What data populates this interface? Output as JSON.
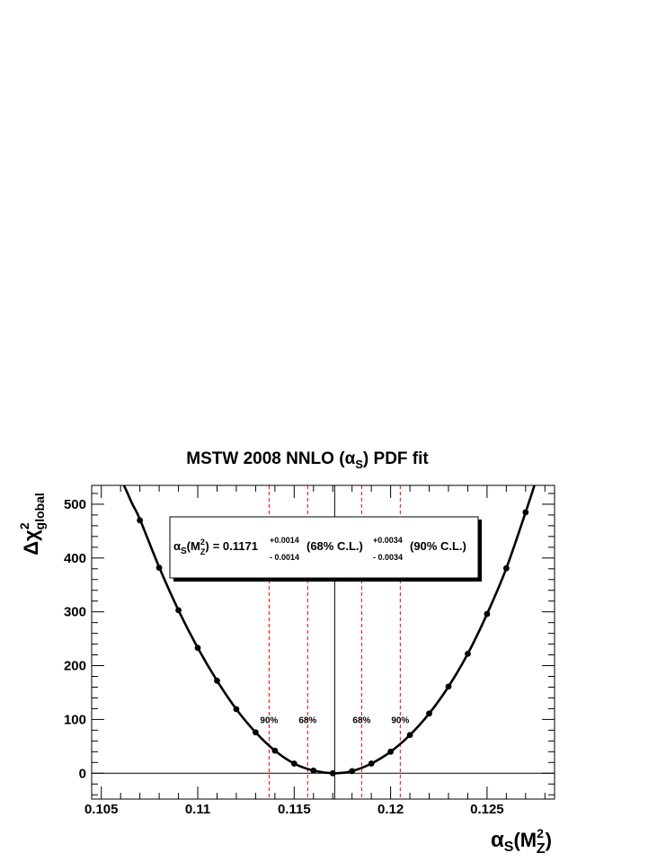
{
  "chart_data": {
    "type": "line",
    "title_main": "MSTW 2008 NNLO (",
    "title_symbol": "α",
    "title_sub": "S",
    "title_end": ") PDF fit",
    "xlabel": {
      "symbol": "α",
      "sub": "S",
      "open": "(M",
      "sup": "2",
      "sub2": "Z",
      "close": ")"
    },
    "ylabel": {
      "symbol": "Δχ",
      "sup": "2",
      "sub": "global"
    },
    "xlim": [
      0.1045,
      0.1285
    ],
    "ylim": [
      -48,
      535
    ],
    "x_ticks": [
      0.105,
      0.11,
      0.115,
      0.12,
      0.125
    ],
    "x_tick_labels": [
      "0.105",
      "0.11",
      "0.115",
      "0.12",
      "0.125"
    ],
    "y_ticks": [
      0,
      100,
      200,
      300,
      400,
      500
    ],
    "y_tick_labels": [
      "0",
      "100",
      "200",
      "300",
      "400",
      "500"
    ],
    "best_fit": 0.1171,
    "fit_points": {
      "x": [
        0.107,
        0.108,
        0.109,
        0.11,
        0.111,
        0.112,
        0.113,
        0.114,
        0.115,
        0.116,
        0.117,
        0.118,
        0.119,
        0.12,
        0.121,
        0.122,
        0.123,
        0.124,
        0.125,
        0.126,
        0.127
      ],
      "y": [
        470,
        382,
        303,
        233,
        172,
        119,
        76,
        42,
        18,
        5,
        0,
        4,
        18,
        40,
        71,
        111,
        161,
        222,
        296,
        381,
        485
      ]
    },
    "curve": {
      "x": [
        0.1058,
        0.1062,
        0.1066,
        0.107,
        0.108,
        0.109,
        0.11,
        0.111,
        0.112,
        0.113,
        0.114,
        0.115,
        0.116,
        0.1171,
        0.118,
        0.119,
        0.12,
        0.121,
        0.122,
        0.123,
        0.124,
        0.125,
        0.126,
        0.127,
        0.1275,
        0.1279
      ],
      "y": [
        560,
        533,
        501,
        472,
        383,
        303,
        233,
        172,
        119,
        76,
        42,
        18,
        5,
        0,
        4,
        18,
        40,
        71,
        111,
        161,
        222,
        296,
        381,
        485,
        540,
        585
      ]
    },
    "cl_lines": [
      {
        "x": 0.1137,
        "label": "90%"
      },
      {
        "x": 0.1157,
        "label": "68%"
      },
      {
        "x": 0.1185,
        "label": "68%"
      },
      {
        "x": 0.1205,
        "label": "90%"
      }
    ],
    "annotation": {
      "lhs_symbol": "α",
      "lhs_sub": "S",
      "lhs_open": "(M",
      "lhs_sup": "2",
      "lhs_sub2": "Z",
      "lhs_close": ")",
      "value": "= 0.1171",
      "up68": "+0.0014",
      "dn68": "- 0.0014",
      "cl68": "(68% C.L.)",
      "up90": "+0.0034",
      "dn90": "- 0.0034",
      "cl90": "(90% C.L.)"
    },
    "colors": {
      "curve": "#000000",
      "cl_line": "#ff0000",
      "frame": "#000000"
    }
  }
}
